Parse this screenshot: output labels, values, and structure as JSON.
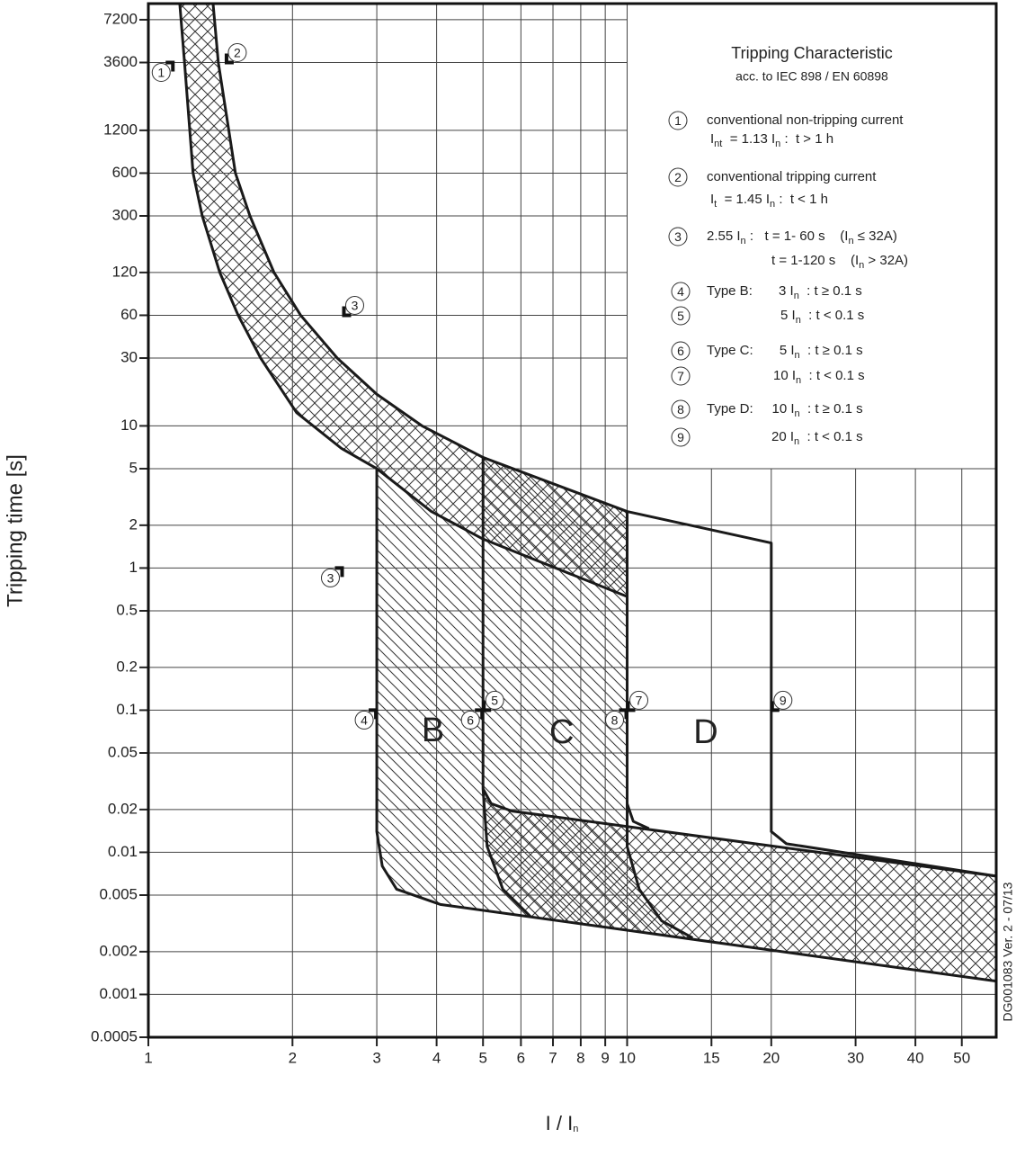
{
  "chart_data": {
    "type": "line",
    "ylabel": "Tripping time [s]",
    "xlabel": [
      "I / I",
      "n"
    ],
    "xscale": "log",
    "yscale": "log",
    "xlim": [
      1,
      59
    ],
    "ylim": [
      0.0005,
      9350
    ],
    "xticks": [
      1,
      2,
      3,
      4,
      5,
      6,
      7,
      8,
      9,
      10,
      15,
      20,
      30,
      40,
      50
    ],
    "yticks": [
      7200,
      3600,
      1200,
      600,
      300,
      120,
      60,
      30,
      10,
      5,
      2,
      1,
      0.5,
      0.2,
      0.1,
      0.05,
      0.02,
      0.01,
      0.005,
      0.002,
      0.001,
      0.0005
    ],
    "grid": true,
    "series": [
      {
        "color": "#1a1a1a",
        "x": [
          1.365,
          1.4,
          1.52,
          1.63,
          1.83,
          2.08,
          2.48,
          3,
          3.73,
          5,
          10,
          20,
          20,
          21.5,
          59
        ],
        "y": [
          9350,
          3600,
          600,
          300,
          120,
          60,
          30,
          16.7,
          10,
          6,
          2.5,
          1.5,
          0.014,
          0.0115,
          0.0068
        ]
      },
      {
        "color": "#1a1a1a",
        "x": [
          1.163,
          1.19,
          1.24,
          1.296,
          1.41,
          1.54,
          1.716,
          2.04,
          2.53,
          3,
          3.9,
          5,
          10
        ],
        "y": [
          9350,
          3600,
          600,
          300,
          120,
          60,
          30,
          12.4,
          6.95,
          5,
          2.5,
          1.6,
          0.63
        ]
      },
      {
        "color": "#1a1a1a",
        "x": [
          3,
          3,
          3.08,
          3.3,
          4.07,
          59
        ],
        "y": [
          5,
          0.014,
          0.008,
          0.0055,
          0.0043,
          0.00124
        ]
      },
      {
        "color": "#1a1a1a",
        "x": [
          5,
          5,
          5.1,
          5.5,
          6.3
        ],
        "y": [
          6,
          0.028,
          0.011,
          0.0055,
          0.0035
        ]
      },
      {
        "color": "#1a1a1a",
        "x": [
          5,
          5.2,
          5.75,
          59
        ],
        "y": [
          0.028,
          0.022,
          0.0195,
          0.0068
        ]
      },
      {
        "color": "#1a1a1a",
        "x": [
          10,
          10,
          10.6,
          11.8,
          13.7
        ],
        "y": [
          2.5,
          0.011,
          0.0055,
          0.0033,
          0.0025
        ]
      },
      {
        "color": "#1a1a1a",
        "x": [
          10,
          10.3,
          11.1
        ],
        "y": [
          0.022,
          0.0165,
          0.0147
        ]
      }
    ],
    "regions": [
      {
        "label": "B",
        "x": 3.93,
        "y": 0.07
      },
      {
        "label": "C",
        "x": 7.3,
        "y": 0.068
      },
      {
        "label": "D",
        "x": 14.6,
        "y": 0.068
      }
    ],
    "annotations": [
      {
        "label": "1",
        "x": 1.13,
        "y": 3600,
        "side": "left"
      },
      {
        "label": "2",
        "x": 1.45,
        "y": 3600,
        "side": "right"
      },
      {
        "label": "3",
        "x": 2.55,
        "y": 60,
        "side": "right"
      },
      {
        "label": "3",
        "x": 2.55,
        "y": 1,
        "side": "left"
      },
      {
        "label": "4",
        "x": 3,
        "y": 0.1,
        "side": "left"
      },
      {
        "label": "5",
        "x": 5,
        "y": 0.1,
        "side": "right"
      },
      {
        "label": "6",
        "x": 5,
        "y": 0.1,
        "side": "left"
      },
      {
        "label": "7",
        "x": 10,
        "y": 0.1,
        "side": "right"
      },
      {
        "label": "8",
        "x": 10,
        "y": 0.1,
        "side": "left"
      },
      {
        "label": "9",
        "x": 20,
        "y": 0.1,
        "side": "right"
      }
    ],
    "legend": {
      "title": "Tripping Characteristic",
      "subtitle": "acc. to IEC 898 / EN 60898",
      "items": [
        {
          "label": "1",
          "lines": [
            [
              "conventional non-tripping current"
            ],
            [
              "I",
              "nt",
              "  = 1.13 I",
              "n",
              " :  t > 1 h"
            ]
          ]
        },
        {
          "label": "2",
          "lines": [
            [
              "conventional tripping current"
            ],
            [
              "I",
              "t",
              "  = 1.45 I",
              "n",
              " :  t < 1 h"
            ]
          ]
        },
        {
          "label": "3",
          "lines": [
            [
              "2.55 I",
              "n",
              " :   t = 1- 60 s    (I",
              "n",
              " ≤ 32A)"
            ],
            [
              "t = 1-120 s    (I",
              "n",
              " > 32A)"
            ]
          ]
        },
        {
          "label": "4",
          "lines": [
            [
              "Type B:       3 I",
              "n",
              "  : t ≥ 0.1 s"
            ]
          ]
        },
        {
          "label": "5",
          "lines": [
            [
              "5 I",
              "n",
              "  : t < 0.1 s"
            ]
          ]
        },
        {
          "label": "6",
          "lines": [
            [
              "Type C:       5 I",
              "n",
              "  : t ≥ 0.1 s"
            ]
          ]
        },
        {
          "label": "7",
          "lines": [
            [
              "10 I",
              "n",
              "  : t < 0.1 s"
            ]
          ]
        },
        {
          "label": "8",
          "lines": [
            [
              "Type D:     10 I",
              "n",
              "  : t ≥ 0.1 s"
            ]
          ]
        },
        {
          "label": "9",
          "lines": [
            [
              "20 I",
              "n",
              "  : t < 0.1 s"
            ]
          ]
        }
      ]
    },
    "note": "DG001083 Ver. 2 - 07/13"
  }
}
